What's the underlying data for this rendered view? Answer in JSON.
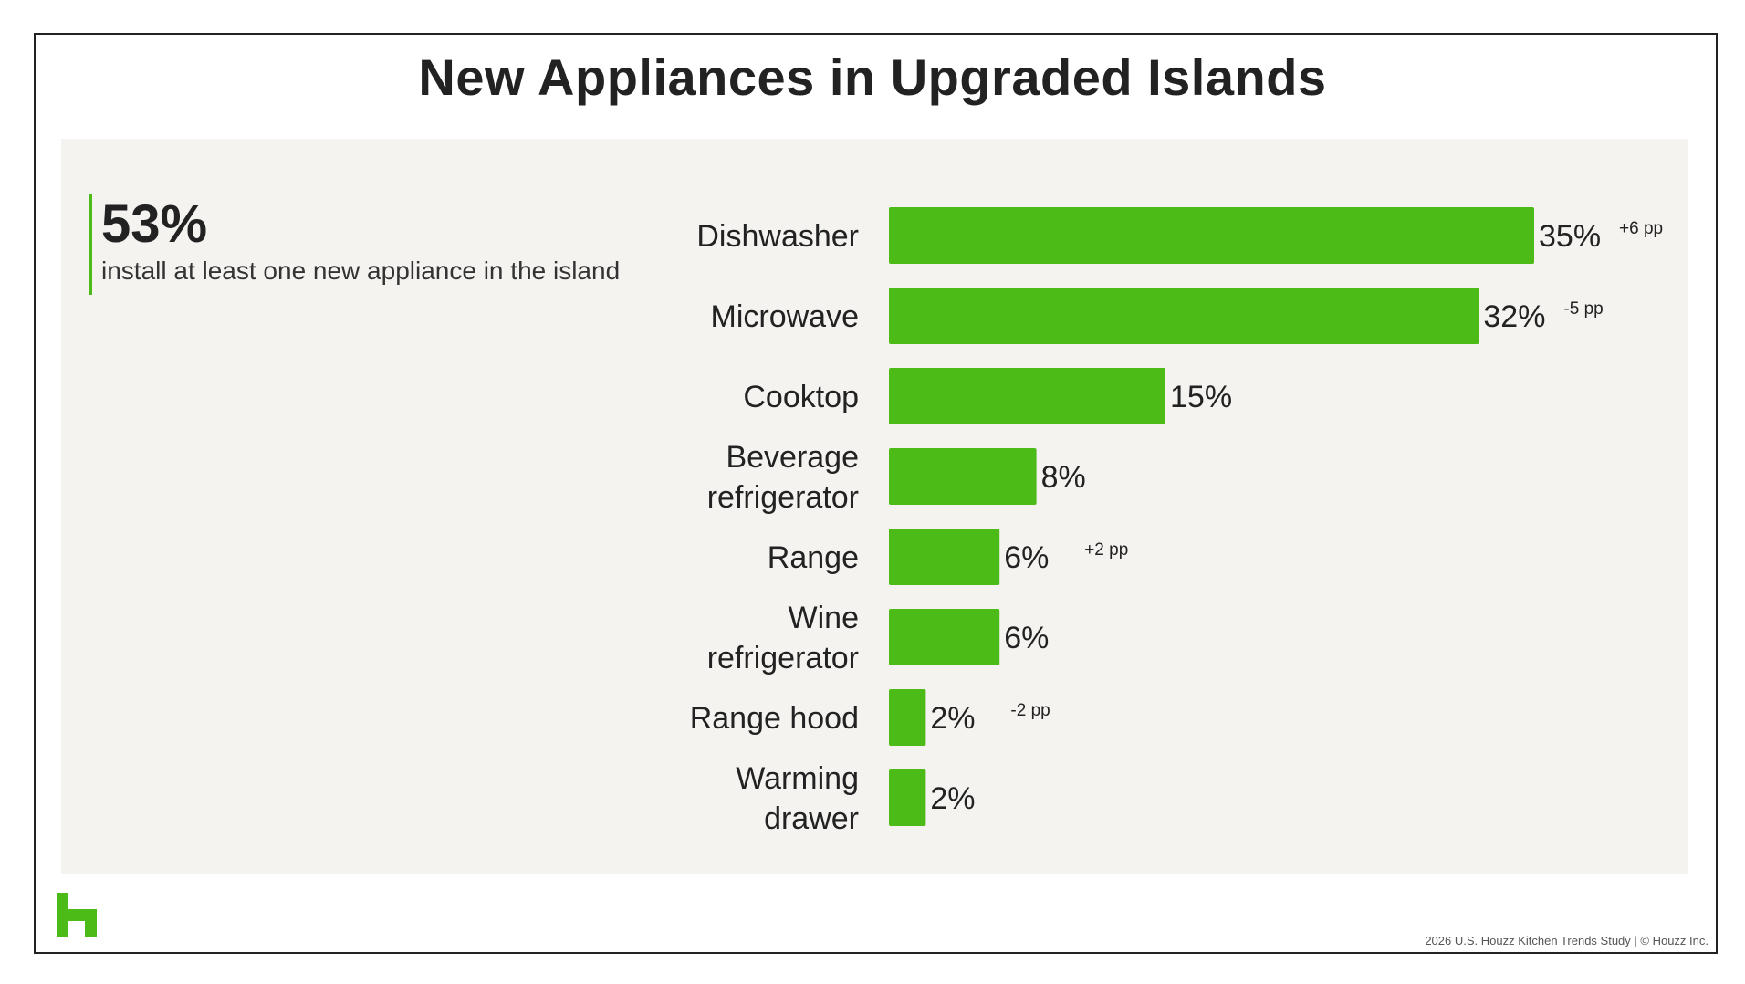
{
  "title": "New Appliances in Upgraded Islands",
  "stat": {
    "value": "53%",
    "text": "install at least one new appliance in the island"
  },
  "colors": {
    "bar": "#4dbb17",
    "panel": "#f4f3f0",
    "accent": "#4dbb17"
  },
  "chart_data": {
    "type": "bar",
    "orientation": "horizontal",
    "title": "",
    "xlabel": "",
    "ylabel": "",
    "xlim": [
      0,
      35
    ],
    "grid": false,
    "categories": [
      "Dishwasher",
      "Microwave",
      "Cooktop",
      "Beverage refrigerator",
      "Range",
      "Wine refrigerator",
      "Range hood",
      "Warming drawer"
    ],
    "category_lines": [
      [
        "Dishwasher"
      ],
      [
        "Microwave"
      ],
      [
        "Cooktop"
      ],
      [
        "Beverage",
        "refrigerator"
      ],
      [
        "Range"
      ],
      [
        "Wine",
        "refrigerator"
      ],
      [
        "Range hood"
      ],
      [
        "Warming",
        "drawer"
      ]
    ],
    "values": [
      35,
      32,
      15,
      8,
      6,
      6,
      2,
      2
    ],
    "value_labels": [
      "35%",
      "32%",
      "15%",
      "8%",
      "6%",
      "6%",
      "2%",
      "2%"
    ],
    "changes": [
      "+6 pp",
      "-5 pp",
      "",
      "",
      "+2 pp",
      "",
      "-2 pp",
      ""
    ]
  },
  "footer": "2026 U.S. Houzz Kitchen Trends Study  |  © Houzz Inc.",
  "logo": {
    "icon": "houzz-logo-icon"
  }
}
